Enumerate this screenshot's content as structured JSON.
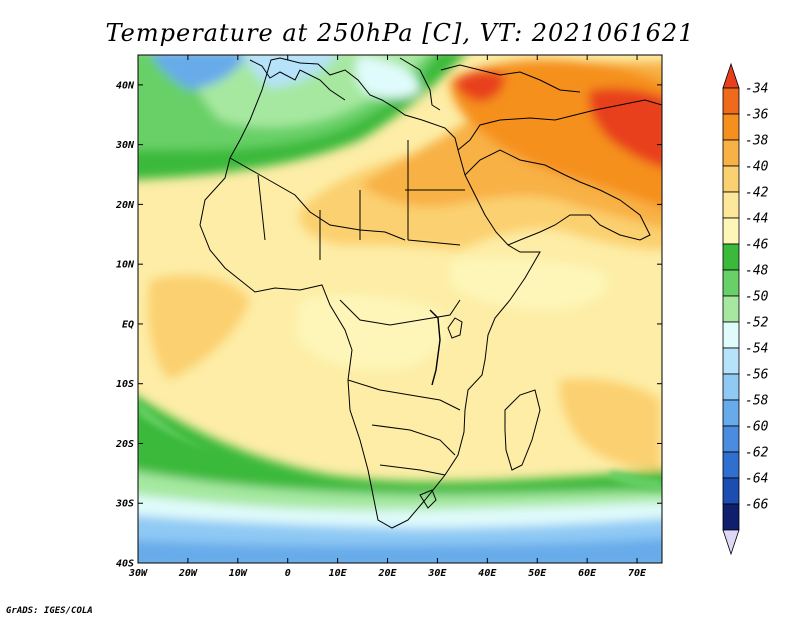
{
  "title": "Temperature at 250hPa [C], VT: 2021061621",
  "credit": "GrADS: IGES/COLA",
  "map": {
    "lon_range": [
      -30,
      75
    ],
    "lat_range": [
      -40,
      45
    ],
    "x_ticks": [
      {
        "lon": -30,
        "label": "30W"
      },
      {
        "lon": -20,
        "label": "20W"
      },
      {
        "lon": -10,
        "label": "10W"
      },
      {
        "lon": 0,
        "label": "0"
      },
      {
        "lon": 10,
        "label": "10E"
      },
      {
        "lon": 20,
        "label": "20E"
      },
      {
        "lon": 30,
        "label": "30E"
      },
      {
        "lon": 40,
        "label": "40E"
      },
      {
        "lon": 50,
        "label": "50E"
      },
      {
        "lon": 60,
        "label": "60E"
      },
      {
        "lon": 70,
        "label": "70E"
      }
    ],
    "y_ticks": [
      {
        "lat": 40,
        "label": "40N"
      },
      {
        "lat": 30,
        "label": "30N"
      },
      {
        "lat": 20,
        "label": "20N"
      },
      {
        "lat": 10,
        "label": "10N"
      },
      {
        "lat": 0,
        "label": "EQ"
      },
      {
        "lat": -10,
        "label": "10S"
      },
      {
        "lat": -20,
        "label": "20S"
      },
      {
        "lat": -30,
        "label": "30S"
      },
      {
        "lat": -40,
        "label": "40S"
      }
    ]
  },
  "colorbar": {
    "top_color": "#e8401c",
    "bottom_color": "#dcd8f6",
    "levels": [
      {
        "label": "-34",
        "color": "#f06a1c"
      },
      {
        "label": "-36",
        "color": "#f5901f"
      },
      {
        "label": "-38",
        "color": "#f8b145"
      },
      {
        "label": "-40",
        "color": "#fbd070"
      },
      {
        "label": "-42",
        "color": "#fde79b"
      },
      {
        "label": "-44",
        "color": "#fdf6b8"
      },
      {
        "label": "-46",
        "color": "#3bb93b"
      },
      {
        "label": "-48",
        "color": "#68d066"
      },
      {
        "label": "-50",
        "color": "#a6e8a0"
      },
      {
        "label": "-52",
        "color": "#e0fbfb"
      },
      {
        "label": "-54",
        "color": "#b6e2fa"
      },
      {
        "label": "-56",
        "color": "#8fc9f4"
      },
      {
        "label": "-58",
        "color": "#67abea"
      },
      {
        "label": "-60",
        "color": "#4a8de0"
      },
      {
        "label": "-62",
        "color": "#2f6fd0"
      },
      {
        "label": "-64",
        "color": "#1b4eb0"
      },
      {
        "label": "-66",
        "color": "#0e1f6e"
      }
    ]
  }
}
